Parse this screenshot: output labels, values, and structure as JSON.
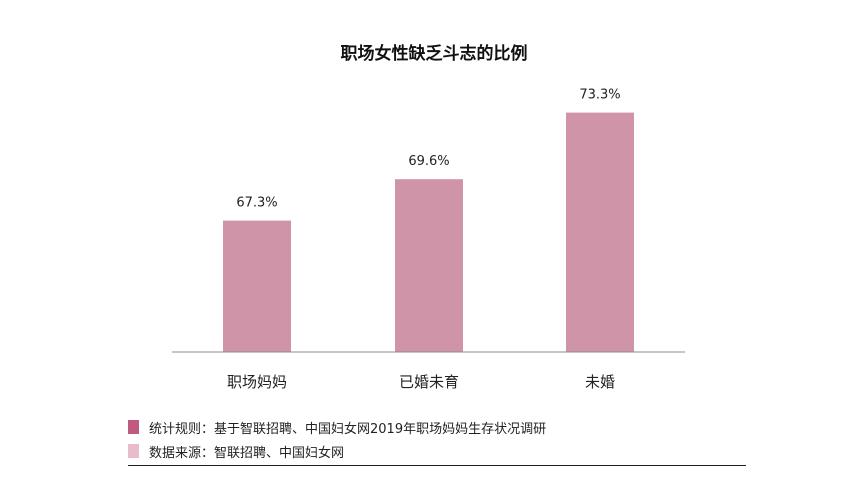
{
  "chart_data": {
    "type": "bar",
    "title": "职场女性缺乏斗志的比例",
    "categories": [
      "职场妈妈",
      "已婚未育",
      "未婚"
    ],
    "values": [
      67.3,
      69.6,
      73.3
    ],
    "value_labels": [
      "67.3%",
      "69.6%",
      "73.3%"
    ],
    "unit": "%",
    "bar_color": "#d094a8",
    "axis_color": "#8c8c8c",
    "grid": false,
    "legend": "none"
  },
  "notes": [
    {
      "text": "统计规则：基于智联招聘、中国妇女网2019年职场妈妈生存状况调研",
      "color": "#c05a7e"
    },
    {
      "text": "数据来源：智联招聘、中国妇女网",
      "color": "#e8bccb"
    }
  ]
}
